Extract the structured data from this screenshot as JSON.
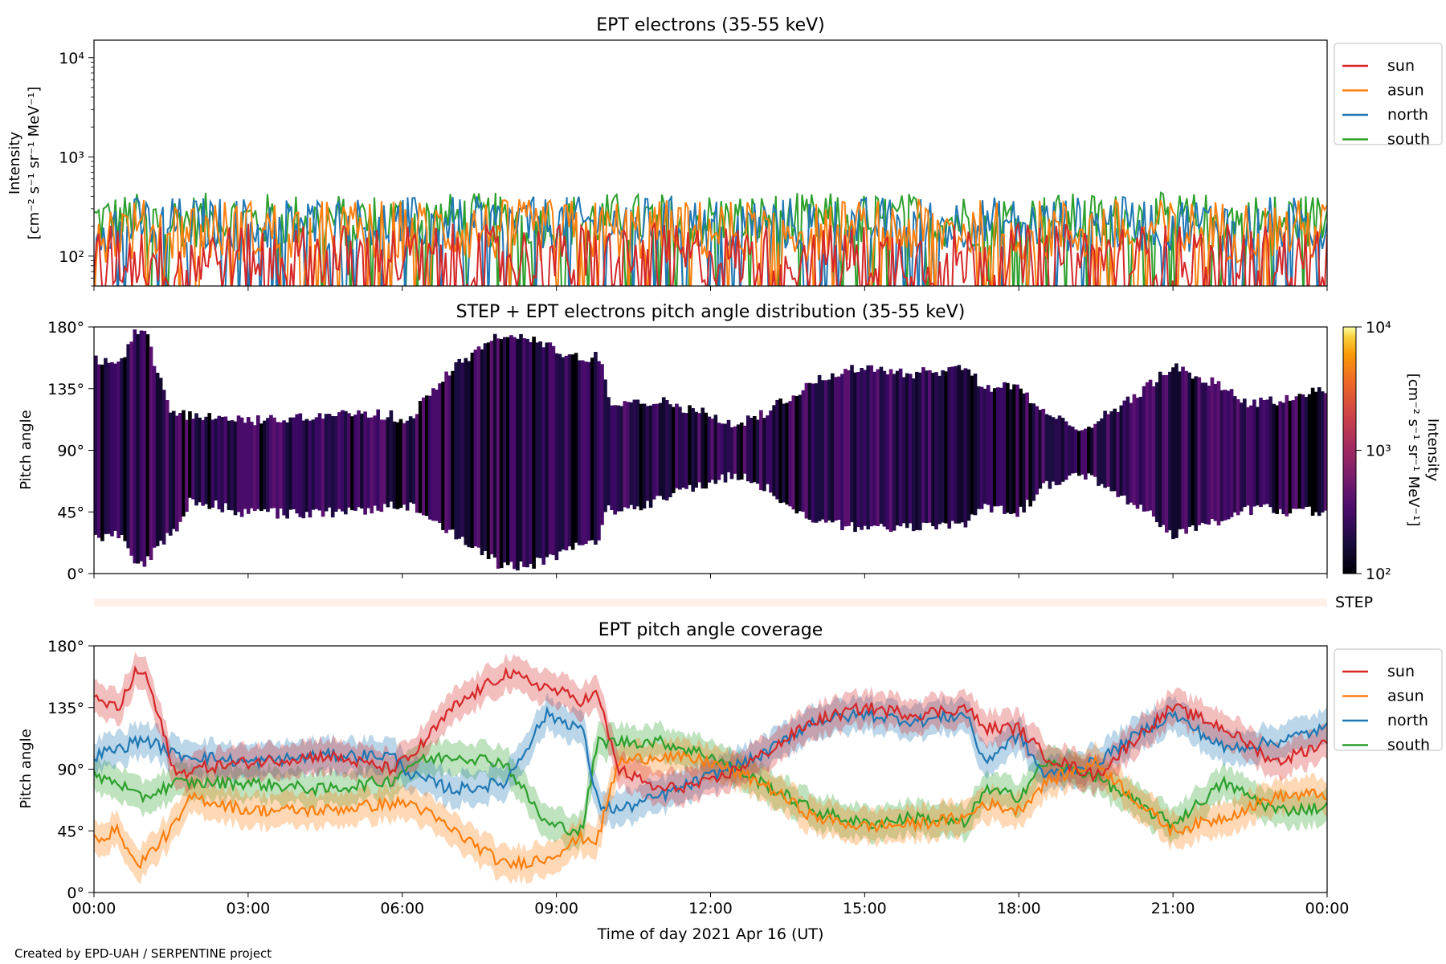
{
  "figure": {
    "credit": "Created by EPD-UAH / SERPENTINE project",
    "xlabel": "Time of day 2021 Apr 16 (UT)",
    "x_tick_labels": [
      "00:00",
      "03:00",
      "06:00",
      "09:00",
      "12:00",
      "15:00",
      "18:00",
      "21:00",
      "00:00"
    ]
  },
  "colors": {
    "sun": "#d62728",
    "asun": "#ff7f0e",
    "north": "#1f77b4",
    "south": "#2ca02c"
  },
  "chart_data": [
    {
      "type": "line",
      "title": "EPT electrons (35-55 keV)",
      "ylabel_line1": "Intensity",
      "ylabel_line2": "[cm⁻² s⁻¹ sr⁻¹ MeV⁻¹]",
      "yscale": "log",
      "ylim": [
        50,
        15000
      ],
      "y_ticks": [
        100,
        1000,
        10000
      ],
      "y_tick_labels": [
        "10²",
        "10³",
        "10⁴"
      ],
      "xlim_hours": [
        0,
        24
      ],
      "legend_position": "outside right, top",
      "series": [
        {
          "name": "sun",
          "level": 95,
          "noise_decades": 0.35
        },
        {
          "name": "asun",
          "level": 180,
          "noise_decades": 0.32
        },
        {
          "name": "north",
          "level": 210,
          "noise_decades": 0.28
        },
        {
          "name": "south",
          "level": 230,
          "noise_decades": 0.28
        }
      ]
    },
    {
      "type": "heatmap",
      "title": "STEP + EPT electrons pitch angle distribution (35-55 keV)",
      "ylabel": "Pitch angle",
      "ylim": [
        0,
        180
      ],
      "y_ticks": [
        0,
        45,
        90,
        135,
        180
      ],
      "y_tick_labels": [
        "0°",
        "45°",
        "90°",
        "135°",
        "180°"
      ],
      "colorbar": {
        "label_line1": "Intensity",
        "label_line2": "[cm⁻² s⁻¹ sr⁻¹ MeV⁻¹]",
        "range": [
          100,
          10000
        ],
        "ticks": [
          "10²",
          "10³",
          "10⁴"
        ],
        "colormap": "inferno"
      },
      "step_label": "STEP"
    },
    {
      "type": "line",
      "title": "EPT pitch angle coverage",
      "ylabel": "Pitch angle",
      "ylim": [
        0,
        180
      ],
      "y_ticks": [
        0,
        45,
        90,
        135,
        180
      ],
      "y_tick_labels": [
        "0°",
        "45°",
        "90°",
        "135°",
        "180°"
      ],
      "legend_position": "outside right, top",
      "shaded_band_halfwidth_deg": 12,
      "series": [
        {
          "name": "sun",
          "x_hours": [
            0,
            0.5,
            0.8,
            1.0,
            1.6,
            1.9,
            3,
            4.5,
            5.8,
            6.2,
            7,
            8,
            8.8,
            9.5,
            9.8,
            10.2,
            11,
            12,
            13,
            14,
            15,
            16,
            17,
            17.3,
            18,
            18.5,
            19.5,
            20.5,
            21,
            22,
            23,
            24
          ],
          "pitch": [
            140,
            135,
            160,
            160,
            85,
            90,
            95,
            100,
            90,
            100,
            135,
            160,
            150,
            140,
            145,
            90,
            75,
            80,
            100,
            125,
            135,
            130,
            135,
            120,
            120,
            100,
            85,
            120,
            135,
            120,
            95,
            110
          ]
        },
        {
          "name": "asun",
          "x_hours": [
            0,
            0.5,
            0.8,
            1.0,
            1.6,
            1.9,
            3,
            4.5,
            5.8,
            6.2,
            7,
            8,
            8.8,
            9.5,
            9.8,
            10.2,
            11,
            12,
            13,
            14,
            15,
            16,
            17,
            17.3,
            18,
            18.5,
            19.5,
            20.5,
            21,
            22,
            23,
            24
          ],
          "pitch": [
            40,
            45,
            20,
            25,
            50,
            70,
            60,
            60,
            65,
            65,
            45,
            20,
            25,
            40,
            38,
            95,
            100,
            95,
            80,
            55,
            48,
            50,
            55,
            65,
            60,
            80,
            95,
            60,
            45,
            55,
            70,
            72
          ]
        },
        {
          "name": "north",
          "x_hours": [
            0,
            0.5,
            0.8,
            1.0,
            1.6,
            1.9,
            3,
            4.5,
            5.8,
            6.2,
            7,
            8,
            8.8,
            9.5,
            9.8,
            10.2,
            11,
            12,
            13,
            14,
            15,
            16,
            17,
            17.3,
            18,
            18.5,
            19.5,
            20.5,
            21,
            22,
            23,
            24
          ],
          "pitch": [
            100,
            105,
            110,
            112,
            100,
            100,
            95,
            100,
            100,
            85,
            75,
            80,
            130,
            120,
            65,
            60,
            70,
            85,
            100,
            125,
            130,
            125,
            130,
            95,
            115,
            85,
            95,
            120,
            130,
            105,
            110,
            120
          ]
        },
        {
          "name": "south",
          "x_hours": [
            0,
            0.5,
            0.8,
            1.0,
            1.6,
            1.9,
            3,
            4.5,
            5.8,
            6.2,
            7,
            8,
            8.8,
            9.5,
            9.8,
            10.2,
            11,
            12,
            13,
            14,
            15,
            16,
            17,
            17.3,
            18,
            18.5,
            19.5,
            20.5,
            21,
            22,
            23,
            24
          ],
          "pitch": [
            85,
            80,
            70,
            70,
            80,
            80,
            80,
            75,
            82,
            95,
            100,
            95,
            50,
            45,
            110,
            110,
            110,
            100,
            80,
            60,
            50,
            55,
            50,
            75,
            70,
            95,
            85,
            60,
            50,
            80,
            60,
            62
          ]
        }
      ]
    }
  ]
}
